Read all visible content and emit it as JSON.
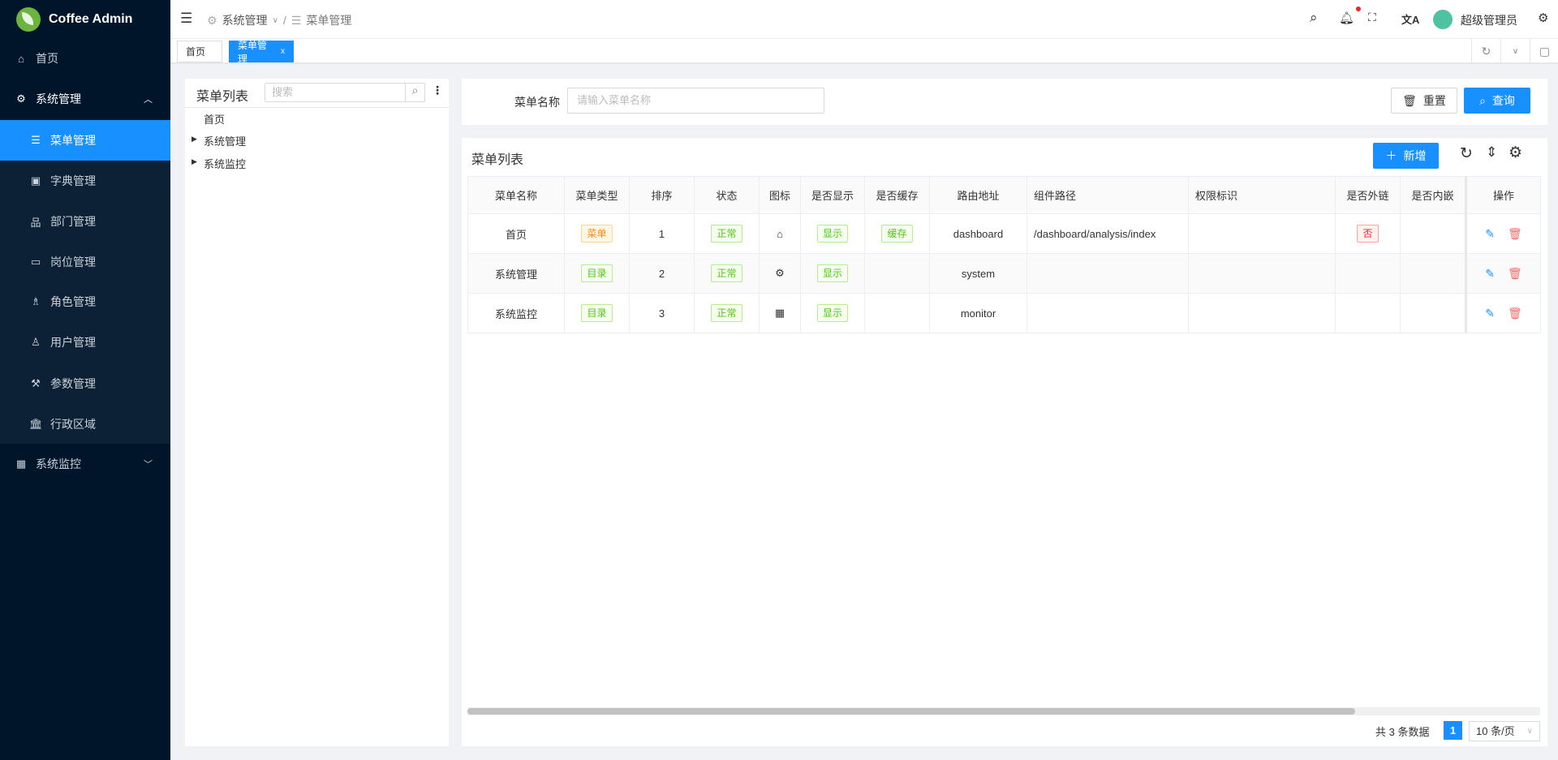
{
  "app": {
    "title": "Coffee Admin"
  },
  "sidebar": {
    "items": [
      {
        "label": "首页",
        "icon": "home-icon"
      },
      {
        "label": "系统管理",
        "icon": "gear-icon",
        "expanded": true
      },
      {
        "label": "菜单管理",
        "icon": "list-icon",
        "active": true
      },
      {
        "label": "字典管理",
        "icon": "dictionary-icon"
      },
      {
        "label": "部门管理",
        "icon": "org-icon"
      },
      {
        "label": "岗位管理",
        "icon": "id-card-icon"
      },
      {
        "label": "角色管理",
        "icon": "users-icon"
      },
      {
        "label": "用户管理",
        "icon": "user-icon"
      },
      {
        "label": "参数管理",
        "icon": "wrench-icon"
      },
      {
        "label": "行政区域",
        "icon": "bank-icon"
      },
      {
        "label": "系统监控",
        "icon": "monitor-icon",
        "expanded": false
      }
    ]
  },
  "header": {
    "breadcrumb": [
      "系统管理",
      "菜单管理"
    ],
    "username": "超级管理员"
  },
  "tabs": [
    {
      "label": "首页"
    },
    {
      "label": "菜单管理",
      "active": true,
      "close": "x"
    }
  ],
  "tree": {
    "title": "菜单列表",
    "search_placeholder": "搜索",
    "nodes": [
      "首页",
      "系统管理",
      "系统监控"
    ]
  },
  "search": {
    "label": "菜单名称",
    "placeholder": "请输入菜单名称",
    "reset": "重置",
    "query": "查询"
  },
  "table": {
    "title": "菜单列表",
    "add": "新增",
    "columns": [
      "菜单名称",
      "菜单类型",
      "排序",
      "状态",
      "图标",
      "是否显示",
      "是否缓存",
      "路由地址",
      "组件路径",
      "权限标识",
      "是否外链",
      "是否内嵌",
      "操作"
    ],
    "rows": [
      {
        "name": "首页",
        "type": "菜单",
        "type_color": "orange",
        "sort": "1",
        "status": "正常",
        "icon": "home-icon",
        "visible": "显示",
        "cache": "缓存",
        "path": "dashboard",
        "component": "/dashboard/analysis/index",
        "perm": "",
        "external": "否",
        "embed": ""
      },
      {
        "name": "系统管理",
        "type": "目录",
        "type_color": "green",
        "sort": "2",
        "status": "正常",
        "icon": "gear-icon",
        "visible": "显示",
        "cache": "",
        "path": "system",
        "component": "",
        "perm": "",
        "external": "",
        "embed": ""
      },
      {
        "name": "系统监控",
        "type": "目录",
        "type_color": "green",
        "sort": "3",
        "status": "正常",
        "icon": "monitor-icon",
        "visible": "显示",
        "cache": "",
        "path": "monitor",
        "component": "",
        "perm": "",
        "external": "",
        "embed": ""
      }
    ]
  },
  "pagination": {
    "total_text": "共 3 条数据",
    "page": "1",
    "page_size": "10 条/页"
  },
  "colors": {
    "primary": "#1890ff",
    "sidebar": "#001529",
    "submenu": "#0c2135"
  }
}
